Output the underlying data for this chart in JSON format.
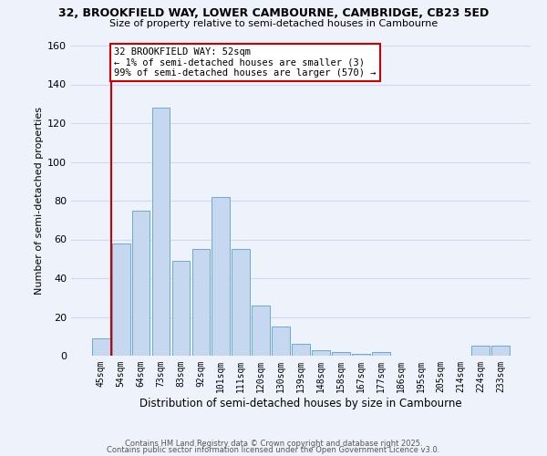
{
  "title1": "32, BROOKFIELD WAY, LOWER CAMBOURNE, CAMBRIDGE, CB23 5ED",
  "title2": "Size of property relative to semi-detached houses in Cambourne",
  "xlabel": "Distribution of semi-detached houses by size in Cambourne",
  "ylabel": "Number of semi-detached properties",
  "bar_labels": [
    "45sqm",
    "54sqm",
    "64sqm",
    "73sqm",
    "83sqm",
    "92sqm",
    "101sqm",
    "111sqm",
    "120sqm",
    "130sqm",
    "139sqm",
    "148sqm",
    "158sqm",
    "167sqm",
    "177sqm",
    "186sqm",
    "195sqm",
    "205sqm",
    "214sqm",
    "224sqm",
    "233sqm"
  ],
  "bar_values": [
    9,
    58,
    75,
    128,
    49,
    55,
    82,
    55,
    26,
    15,
    6,
    3,
    2,
    1,
    2,
    0,
    0,
    0,
    0,
    5,
    5
  ],
  "bar_color": "#c5d8f0",
  "bar_edge_color": "#6aaad5",
  "background_color": "#eef2fb",
  "grid_color": "#d0d8ee",
  "red_line_color": "#cc0000",
  "red_line_x": 0.5,
  "annotation_text": "32 BROOKFIELD WAY: 52sqm\n← 1% of semi-detached houses are smaller (3)\n99% of semi-detached houses are larger (570) →",
  "annotation_box_facecolor": "#ffffff",
  "annotation_box_edgecolor": "#cc0000",
  "ylim_max": 160,
  "yticks": [
    0,
    20,
    40,
    60,
    80,
    100,
    120,
    140,
    160
  ],
  "footer1": "Contains HM Land Registry data © Crown copyright and database right 2025.",
  "footer2": "Contains public sector information licensed under the Open Government Licence v3.0."
}
